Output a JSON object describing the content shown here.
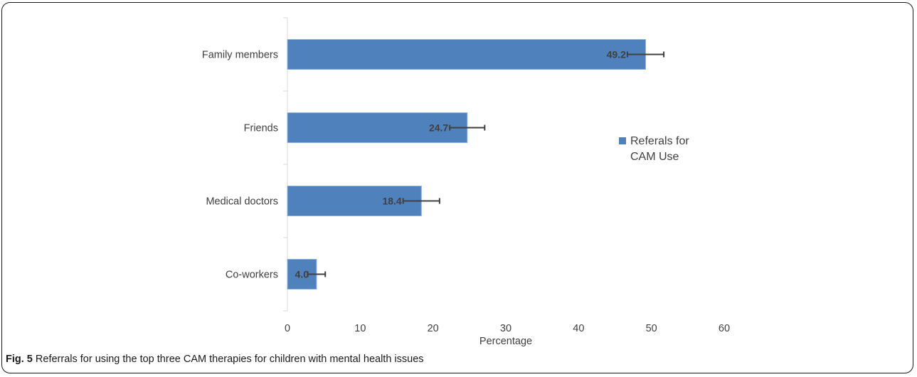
{
  "caption": {
    "label": "Fig. 5",
    "text": "Referrals for using the top three CAM therapies for children with mental health issues"
  },
  "colors": {
    "bar": "#4f81bd",
    "bar_edge": "#8db3e2",
    "error": "#404040",
    "axis": "#d9d9d9",
    "text": "#404040"
  },
  "chart_data": {
    "type": "bar",
    "orientation": "horizontal",
    "categories": [
      "Family members",
      "Friends",
      "Medical doctors",
      "Co-workers"
    ],
    "series": [
      {
        "name": "Referals for CAM Use",
        "values": [
          49.2,
          24.7,
          18.4,
          4.0
        ],
        "labels": [
          "49.2",
          "24.7",
          "18.4",
          "4.0"
        ],
        "error_low": [
          46.7,
          22.3,
          15.9,
          2.8
        ],
        "error_high": [
          51.7,
          27.1,
          20.9,
          5.2
        ]
      }
    ],
    "xlabel": "Percentage",
    "xlim": [
      0,
      60
    ],
    "xticks": [
      0,
      10,
      20,
      30,
      40,
      50,
      60
    ],
    "xtick_labels": [
      "0",
      "10",
      "20",
      "30",
      "40",
      "50",
      "60"
    ],
    "legend_lines": [
      "Referals for",
      "CAM Use"
    ],
    "legend_position": "right",
    "grid": false
  }
}
